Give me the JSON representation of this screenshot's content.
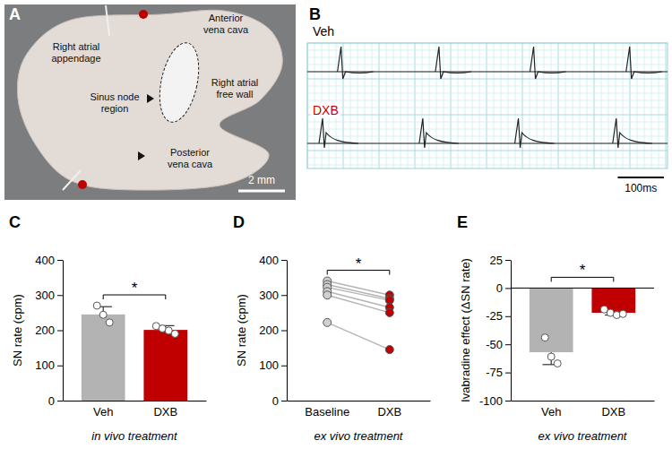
{
  "chart_data": [
    {
      "type": "image",
      "panel": "A",
      "annotations": [
        "Right atrial appendage",
        "Sinus node region",
        "Anterior vena cava",
        "Right atrial free wall",
        "Posterior vena cava"
      ],
      "scale_bar": {
        "value": 2,
        "label": "2 mm"
      }
    },
    {
      "type": "trace",
      "panel": "B",
      "series": [
        {
          "name": "Veh",
          "color": "#000000",
          "values": [
            73,
            285,
            490,
            698
          ]
        },
        {
          "name": "DXB",
          "color": "#c00000",
          "values": [
            33,
            250,
            457,
            669
          ]
        }
      ],
      "xlim": [
        0,
        780
      ],
      "scale_bar": {
        "value": 100,
        "label": "100ms"
      },
      "grid": true,
      "tick_labels": false
    },
    {
      "type": "bar",
      "panel": "C",
      "categories": [
        "Veh",
        "DXB"
      ],
      "values": [
        245,
        201
      ],
      "errors": [
        22,
        12
      ],
      "points": [
        [
          270,
          244,
          222
        ],
        [
          212,
          205,
          199,
          190
        ]
      ],
      "colors": [
        "#b3b3b3",
        "#c00000"
      ],
      "y_label": "SN rate (cpm)",
      "x_label": "in vivo treatment",
      "ylim": [
        0,
        400
      ],
      "yticks": [
        0,
        100,
        200,
        300,
        400
      ],
      "significance": "*"
    },
    {
      "type": "paired",
      "panel": "D",
      "categories": [
        "Baseline",
        "DXB"
      ],
      "points": [
        [
          340,
          330,
          322,
          310,
          300,
          222
        ],
        [
          300,
          290,
          285,
          265,
          250,
          145
        ]
      ],
      "colors": [
        "#d0d0d0",
        "#c00000"
      ],
      "y_label": "SN rate (cpm)",
      "x_label": "ex vivo treatment",
      "ylim": [
        0,
        400
      ],
      "yticks": [
        0,
        100,
        200,
        300,
        400
      ],
      "significance": "*"
    },
    {
      "type": "bar",
      "panel": "E",
      "categories": [
        "Veh",
        "DXB"
      ],
      "values": [
        -57,
        -22
      ],
      "errors": [
        11,
        2
      ],
      "points": [
        [
          -44,
          -61,
          -67
        ],
        [
          -19,
          -22,
          -24,
          -23
        ]
      ],
      "colors": [
        "#b3b3b3",
        "#c00000"
      ],
      "y_label": "Ivabradine effect (ΔSN rate)",
      "x_label": "ex vivo treatment",
      "ylim": [
        -100,
        25
      ],
      "yticks": [
        -100,
        -75,
        -50,
        -25,
        0,
        25
      ],
      "significance": "*"
    }
  ]
}
